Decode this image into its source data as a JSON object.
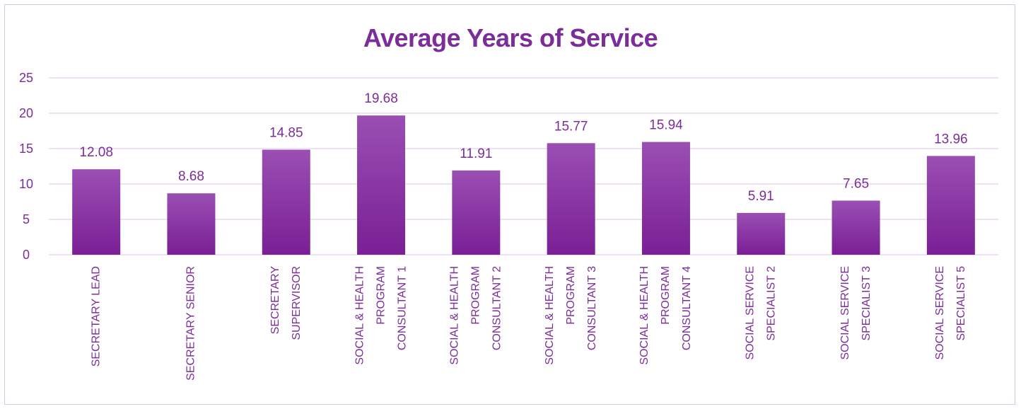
{
  "chart_data": {
    "type": "bar",
    "title": "Average Years of Service",
    "categories": [
      [
        "SECRETARY LEAD"
      ],
      [
        "SECRETARY SENIOR"
      ],
      [
        "SECRETARY",
        "SUPERVISOR"
      ],
      [
        "SOCIAL & HEALTH",
        "PROGRAM",
        "CONSULTANT 1"
      ],
      [
        "SOCIAL & HEALTH",
        "PROGRAM",
        "CONSULTANT 2"
      ],
      [
        "SOCIAL & HEALTH",
        "PROGRAM",
        "CONSULTANT 3"
      ],
      [
        "SOCIAL & HEALTH",
        "PROGRAM",
        "CONSULTANT 4"
      ],
      [
        "SOCIAL SERVICE",
        "SPECIALIST 2"
      ],
      [
        "SOCIAL SERVICE",
        "SPECIALIST 3"
      ],
      [
        "SOCIAL SERVICE",
        "SPECIALIST 5"
      ]
    ],
    "values": [
      12.08,
      8.68,
      14.85,
      19.68,
      11.91,
      15.77,
      15.94,
      5.91,
      7.65,
      13.96
    ],
    "data_labels": [
      "12.08",
      "8.68",
      "14.85",
      "19.68",
      "11.91",
      "15.77",
      "15.94",
      "5.91",
      "7.65",
      "13.96"
    ],
    "ylim": [
      0,
      25
    ],
    "yticks": [
      "0",
      "5",
      "10",
      "15",
      "20",
      "25"
    ],
    "xlabel": "",
    "ylabel": "",
    "grid": true,
    "legend": "none",
    "colors": {
      "bar_top": "#9a4fb3",
      "bar_bottom": "#7a1f95",
      "text": "#7b2d99",
      "grid": "#ead6f0",
      "frame": "#d9c6e0"
    }
  }
}
